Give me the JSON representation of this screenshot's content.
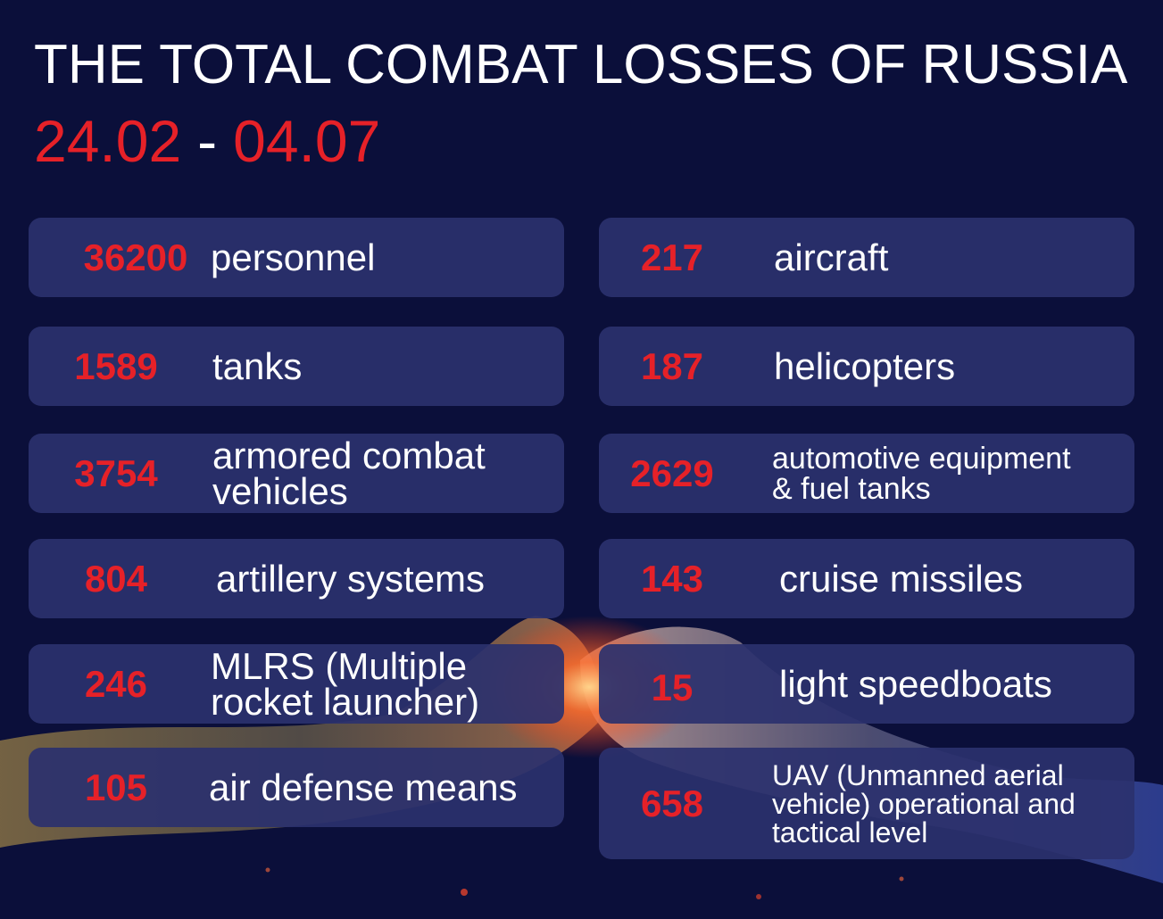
{
  "header": {
    "title": "THE TOTAL COMBAT LOSSES OF RUSSIA",
    "date_start": "24.02",
    "date_separator": "-",
    "date_end": "04.07"
  },
  "colors": {
    "background": "#0b0f3a",
    "card": "#2b316e",
    "accent_red": "#e62128",
    "text": "#ffffff"
  },
  "losses_left": [
    {
      "value": "36200",
      "label": "personnel"
    },
    {
      "value": "1589",
      "label": "tanks"
    },
    {
      "value": "3754",
      "label": "armored combat\nvehicles"
    },
    {
      "value": "804",
      "label": "artillery systems"
    },
    {
      "value": "246",
      "label": "MLRS (Multiple\nrocket launcher)"
    },
    {
      "value": "105",
      "label": "air defense means"
    }
  ],
  "losses_right": [
    {
      "value": "217",
      "label": "aircraft"
    },
    {
      "value": "187",
      "label": "helicopters"
    },
    {
      "value": "2629",
      "label": "automotive equipment\n& fuel tanks"
    },
    {
      "value": "143",
      "label": "cruise missiles"
    },
    {
      "value": "15",
      "label": "light speedboats"
    },
    {
      "value": "658",
      "label": "UAV (Unmanned aerial\nvehicle) operational and\ntactical level"
    }
  ]
}
